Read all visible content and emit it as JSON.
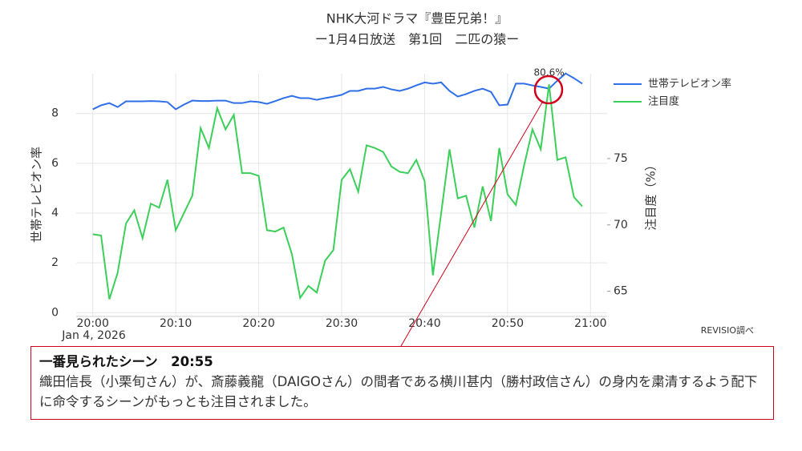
{
  "chart_data": {
    "type": "line",
    "title": "NHK大河ドラマ『豊臣兄弟！』",
    "subtitle": "ー1月4日放送　第1回　二匹の猿ー",
    "y_label": "世帯テレビオン率",
    "y2_label": "注目度（%）",
    "x_date_label": "Jan 4, 2026",
    "source": "REVISIO調べ",
    "x": [
      "2026-01-04 20:00",
      "2026-01-04 20:01",
      "2026-01-04 20:02",
      "2026-01-04 20:03",
      "2026-01-04 20:04",
      "2026-01-04 20:05",
      "2026-01-04 20:06",
      "2026-01-04 20:07",
      "2026-01-04 20:08",
      "2026-01-04 20:09",
      "2026-01-04 20:10",
      "2026-01-04 20:11",
      "2026-01-04 20:12",
      "2026-01-04 20:13",
      "2026-01-04 20:14",
      "2026-01-04 20:15",
      "2026-01-04 20:16",
      "2026-01-04 20:17",
      "2026-01-04 20:18",
      "2026-01-04 20:19",
      "2026-01-04 20:20",
      "2026-01-04 20:21",
      "2026-01-04 20:22",
      "2026-01-04 20:23",
      "2026-01-04 20:24",
      "2026-01-04 20:25",
      "2026-01-04 20:26",
      "2026-01-04 20:27",
      "2026-01-04 20:28",
      "2026-01-04 20:29",
      "2026-01-04 20:30",
      "2026-01-04 20:31",
      "2026-01-04 20:32",
      "2026-01-04 20:33",
      "2026-01-04 20:34",
      "2026-01-04 20:35",
      "2026-01-04 20:36",
      "2026-01-04 20:37",
      "2026-01-04 20:38",
      "2026-01-04 20:39",
      "2026-01-04 20:40",
      "2026-01-04 20:41",
      "2026-01-04 20:42",
      "2026-01-04 20:43",
      "2026-01-04 20:44",
      "2026-01-04 20:45",
      "2026-01-04 20:46",
      "2026-01-04 20:47",
      "2026-01-04 20:48",
      "2026-01-04 20:49",
      "2026-01-04 20:50",
      "2026-01-04 20:51",
      "2026-01-04 20:52",
      "2026-01-04 20:53",
      "2026-01-04 20:54",
      "2026-01-04 20:55",
      "2026-01-04 20:56",
      "2026-01-04 20:57",
      "2026-01-04 20:58",
      "2026-01-04 20:59"
    ],
    "series": [
      {
        "name": "世帯テレビオン率",
        "color": "#2f6fe8",
        "axis": "y",
        "values": [
          8.17,
          8.33,
          8.42,
          8.26,
          8.49,
          8.49,
          8.49,
          8.5,
          8.49,
          8.46,
          8.17,
          8.36,
          8.52,
          8.5,
          8.5,
          8.52,
          8.52,
          8.42,
          8.42,
          8.49,
          8.46,
          8.39,
          8.5,
          8.62,
          8.71,
          8.62,
          8.62,
          8.55,
          8.62,
          8.68,
          8.75,
          8.91,
          8.91,
          9.0,
          9.0,
          9.07,
          8.97,
          8.91,
          9.0,
          9.13,
          9.25,
          9.2,
          9.25,
          8.91,
          8.68,
          8.78,
          8.91,
          9.0,
          8.87,
          8.33,
          8.36,
          9.2,
          9.2,
          9.13,
          9.07,
          9.0,
          9.32,
          9.61,
          9.42,
          9.2
        ]
      },
      {
        "name": "注目度",
        "color": "#3ccf5a",
        "axis": "y2",
        "values": [
          69.3,
          69.2,
          64.4,
          66.4,
          70.1,
          71.1,
          69.0,
          71.6,
          71.3,
          73.4,
          69.6,
          70.9,
          72.2,
          77.3,
          75.8,
          78.8,
          77.2,
          78.3,
          73.9,
          73.9,
          73.7,
          69.6,
          69.5,
          69.8,
          67.8,
          64.5,
          65.4,
          64.9,
          67.3,
          68.1,
          73.4,
          74.2,
          72.5,
          76.0,
          75.8,
          75.5,
          74.4,
          74.0,
          73.9,
          74.9,
          73.3,
          66.2,
          70.9,
          75.7,
          72.0,
          72.2,
          69.8,
          72.9,
          70.3,
          75.8,
          72.3,
          71.5,
          74.5,
          77.2,
          75.7,
          80.6,
          74.9,
          75.1,
          72.1,
          71.4
        ],
        "value_labels": [
          null,
          null,
          null,
          null,
          null,
          null,
          null,
          null,
          null,
          null,
          null,
          null,
          null,
          null,
          null,
          null,
          null,
          null,
          null,
          null,
          null,
          null,
          null,
          null,
          null,
          null,
          null,
          null,
          null,
          null,
          null,
          null,
          null,
          null,
          null,
          null,
          null,
          null,
          null,
          null,
          null,
          null,
          null,
          null,
          null,
          null,
          null,
          null,
          null,
          null,
          null,
          null,
          null,
          null,
          null,
          "80.6%",
          null,
          null,
          null,
          null
        ]
      }
    ],
    "xlim": [
      "2026-01-04 19:58",
      "2026-01-04 21:02"
    ],
    "xticks": [
      {
        "value": "2026-01-04 20:00",
        "label": "20:00"
      },
      {
        "value": "2026-01-04 20:10",
        "label": "20:10"
      },
      {
        "value": "2026-01-04 20:20",
        "label": "20:20"
      },
      {
        "value": "2026-01-04 20:30",
        "label": "20:30"
      },
      {
        "value": "2026-01-04 20:40",
        "label": "20:40"
      },
      {
        "value": "2026-01-04 20:50",
        "label": "20:50"
      },
      {
        "value": "2026-01-04 21:00",
        "label": "21:00"
      }
    ],
    "ylim": [
      -0.15,
      9.6
    ],
    "yticks": [
      0,
      2,
      4,
      6,
      8
    ],
    "y2lim": [
      63.1,
      81.4
    ],
    "y2ticks": [
      65,
      70,
      75
    ],
    "grid": true,
    "legend": "right"
  },
  "note": {
    "heading": "一番見られたシーン　20:55",
    "body": "織田信長（小栗旬さん）が、斎藤義龍（DAIGOさん）の間者である横川甚内（勝村政信さん）の身内を粛清するよう配下に命令するシーンがもっとも注目されました。"
  }
}
